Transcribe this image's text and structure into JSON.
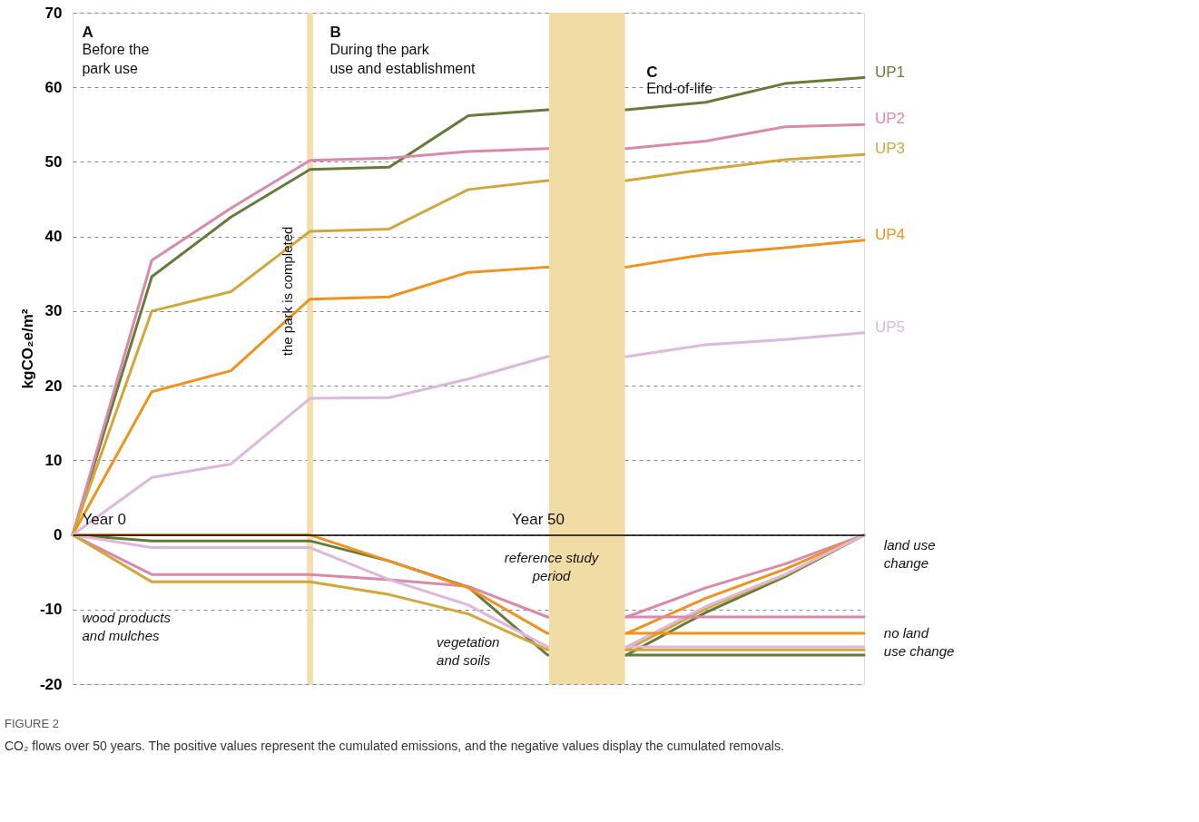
{
  "chart_data": {
    "type": "line",
    "ylabel": "kgCO₂e/m²",
    "categories": [
      null,
      null,
      null,
      null,
      null,
      null,
      null,
      null,
      null,
      null,
      null
    ],
    "ylim": [
      -20,
      70
    ],
    "yticks": [
      -20,
      -10,
      0,
      10,
      20,
      30,
      40,
      50,
      60,
      70
    ],
    "grid": "y",
    "line_style": "solid",
    "series": [
      {
        "name": "UP1",
        "color": "#667a3a",
        "values": [
          0,
          34.6,
          42.6,
          49.0,
          49.3,
          56.2,
          57.0,
          57.0,
          58.0,
          60.5,
          61.3
        ]
      },
      {
        "name": "UP2",
        "color": "#d98aac",
        "values": [
          0,
          36.8,
          43.8,
          50.2,
          50.5,
          51.4,
          51.8,
          51.8,
          52.8,
          54.7,
          55.0
        ]
      },
      {
        "name": "UP3",
        "color": "#d4a63a",
        "values": [
          0,
          30.0,
          32.6,
          40.7,
          41.0,
          46.3,
          47.5,
          47.5,
          49.0,
          50.3,
          51.0
        ]
      },
      {
        "name": "UP4",
        "color": "#f0921c",
        "values": [
          0,
          19.2,
          22.0,
          31.6,
          31.9,
          35.2,
          35.9,
          35.9,
          37.6,
          38.5,
          39.5
        ]
      },
      {
        "name": "UP5",
        "color": "#dcb8dc",
        "values": [
          0,
          7.7,
          9.5,
          18.3,
          18.4,
          20.9,
          23.9,
          23.9,
          25.5,
          26.2,
          27.1
        ]
      },
      {
        "color": "#667a3a",
        "values": [
          0,
          -0.8,
          -0.8,
          -0.8,
          -3.5,
          -7.0,
          -16.1,
          -16.1,
          -10.4,
          -5.6,
          0
        ]
      },
      {
        "color": "#d98aac",
        "values": [
          0,
          -5.3,
          -5.3,
          -5.3,
          -6.0,
          -6.9,
          -11.0,
          -11.0,
          -7.1,
          -3.9,
          0
        ]
      },
      {
        "color": "#d4a63a",
        "values": [
          0,
          -6.3,
          -6.3,
          -6.3,
          -8.0,
          -10.6,
          -15.4,
          -15.4,
          -9.9,
          -5.4,
          0
        ]
      },
      {
        "color": "#f0921c",
        "values": [
          0,
          0,
          0,
          0,
          -3.5,
          -7.1,
          -13.2,
          -13.2,
          -8.5,
          -4.6,
          0
        ]
      },
      {
        "color": "#dcb8dc",
        "values": [
          0,
          -1.7,
          -1.7,
          -1.7,
          -6.0,
          -9.4,
          -15.0,
          -15.0,
          -9.6,
          -5.3,
          0
        ]
      },
      {
        "color": "#667a3a",
        "values": [
          null,
          null,
          null,
          null,
          null,
          null,
          null,
          -16.1,
          -16.1,
          -16.1,
          -16.1
        ]
      },
      {
        "color": "#d98aac",
        "values": [
          null,
          null,
          null,
          null,
          null,
          null,
          null,
          -11.0,
          -11.0,
          -11.0,
          -11.0
        ]
      },
      {
        "color": "#d4a63a",
        "values": [
          null,
          null,
          null,
          null,
          null,
          null,
          null,
          -15.4,
          -15.4,
          -15.4,
          -15.4
        ]
      },
      {
        "color": "#f0921c",
        "values": [
          null,
          null,
          null,
          null,
          null,
          null,
          null,
          -13.2,
          -13.2,
          -13.2,
          -13.2
        ]
      },
      {
        "color": "#dcb8dc",
        "values": [
          null,
          null,
          null,
          null,
          null,
          null,
          null,
          -15.0,
          -15.0,
          -15.0,
          -15.0
        ]
      }
    ],
    "annotations": [
      "A",
      "Before the park use",
      "B",
      "During the park use and establishment",
      "C",
      "End-of-life",
      "wood products and mulches",
      "vegetation and soils",
      "land use change",
      "no land use change",
      "FIGURE 2",
      "CO₂ flows over 50 years. The positive values represent the cumulated emissions, and the negative values display the cumulated removals.",
      "Year 0",
      "Year 50",
      "the park is completed",
      "reference study period"
    ]
  }
}
